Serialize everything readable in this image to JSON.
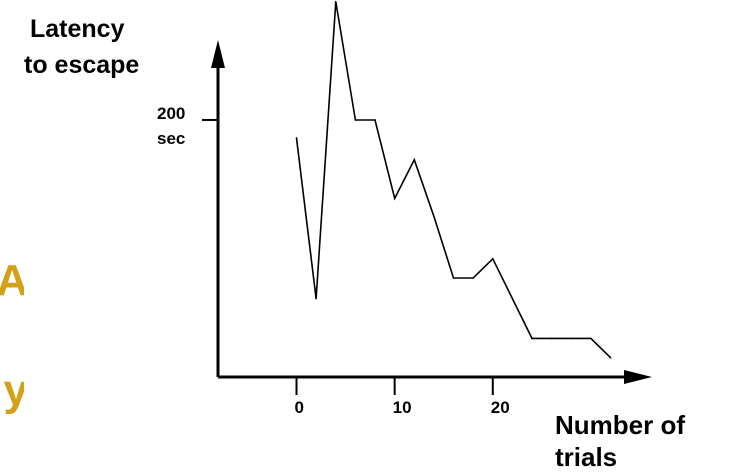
{
  "chart_data": {
    "type": "line",
    "ylabel_lines": [
      "Latency",
      "to escape"
    ],
    "xlabel_lines": [
      "Number of",
      "trials"
    ],
    "y_tick": {
      "value": 200,
      "label_lines": [
        "200",
        "sec"
      ]
    },
    "x_ticks": [
      0,
      10,
      20
    ],
    "xlim": [
      -8,
      35
    ],
    "ylim": [
      0,
      270
    ],
    "grid": false,
    "series": [
      {
        "x": [
          0,
          2,
          4,
          6,
          8,
          10,
          12,
          14,
          16,
          18,
          20,
          22,
          24,
          26,
          28,
          30,
          32
        ],
        "values": [
          186,
          61,
          292,
          200,
          200,
          139,
          169,
          125,
          77,
          77,
          92,
          61,
          30,
          30,
          30,
          30,
          15
        ]
      }
    ]
  },
  "side_fragments": {
    "color": "#d4a017",
    "items": [
      "A",
      "y"
    ]
  },
  "colors": {
    "line": "#000000",
    "axes": "#000000",
    "background": "#ffffff"
  }
}
